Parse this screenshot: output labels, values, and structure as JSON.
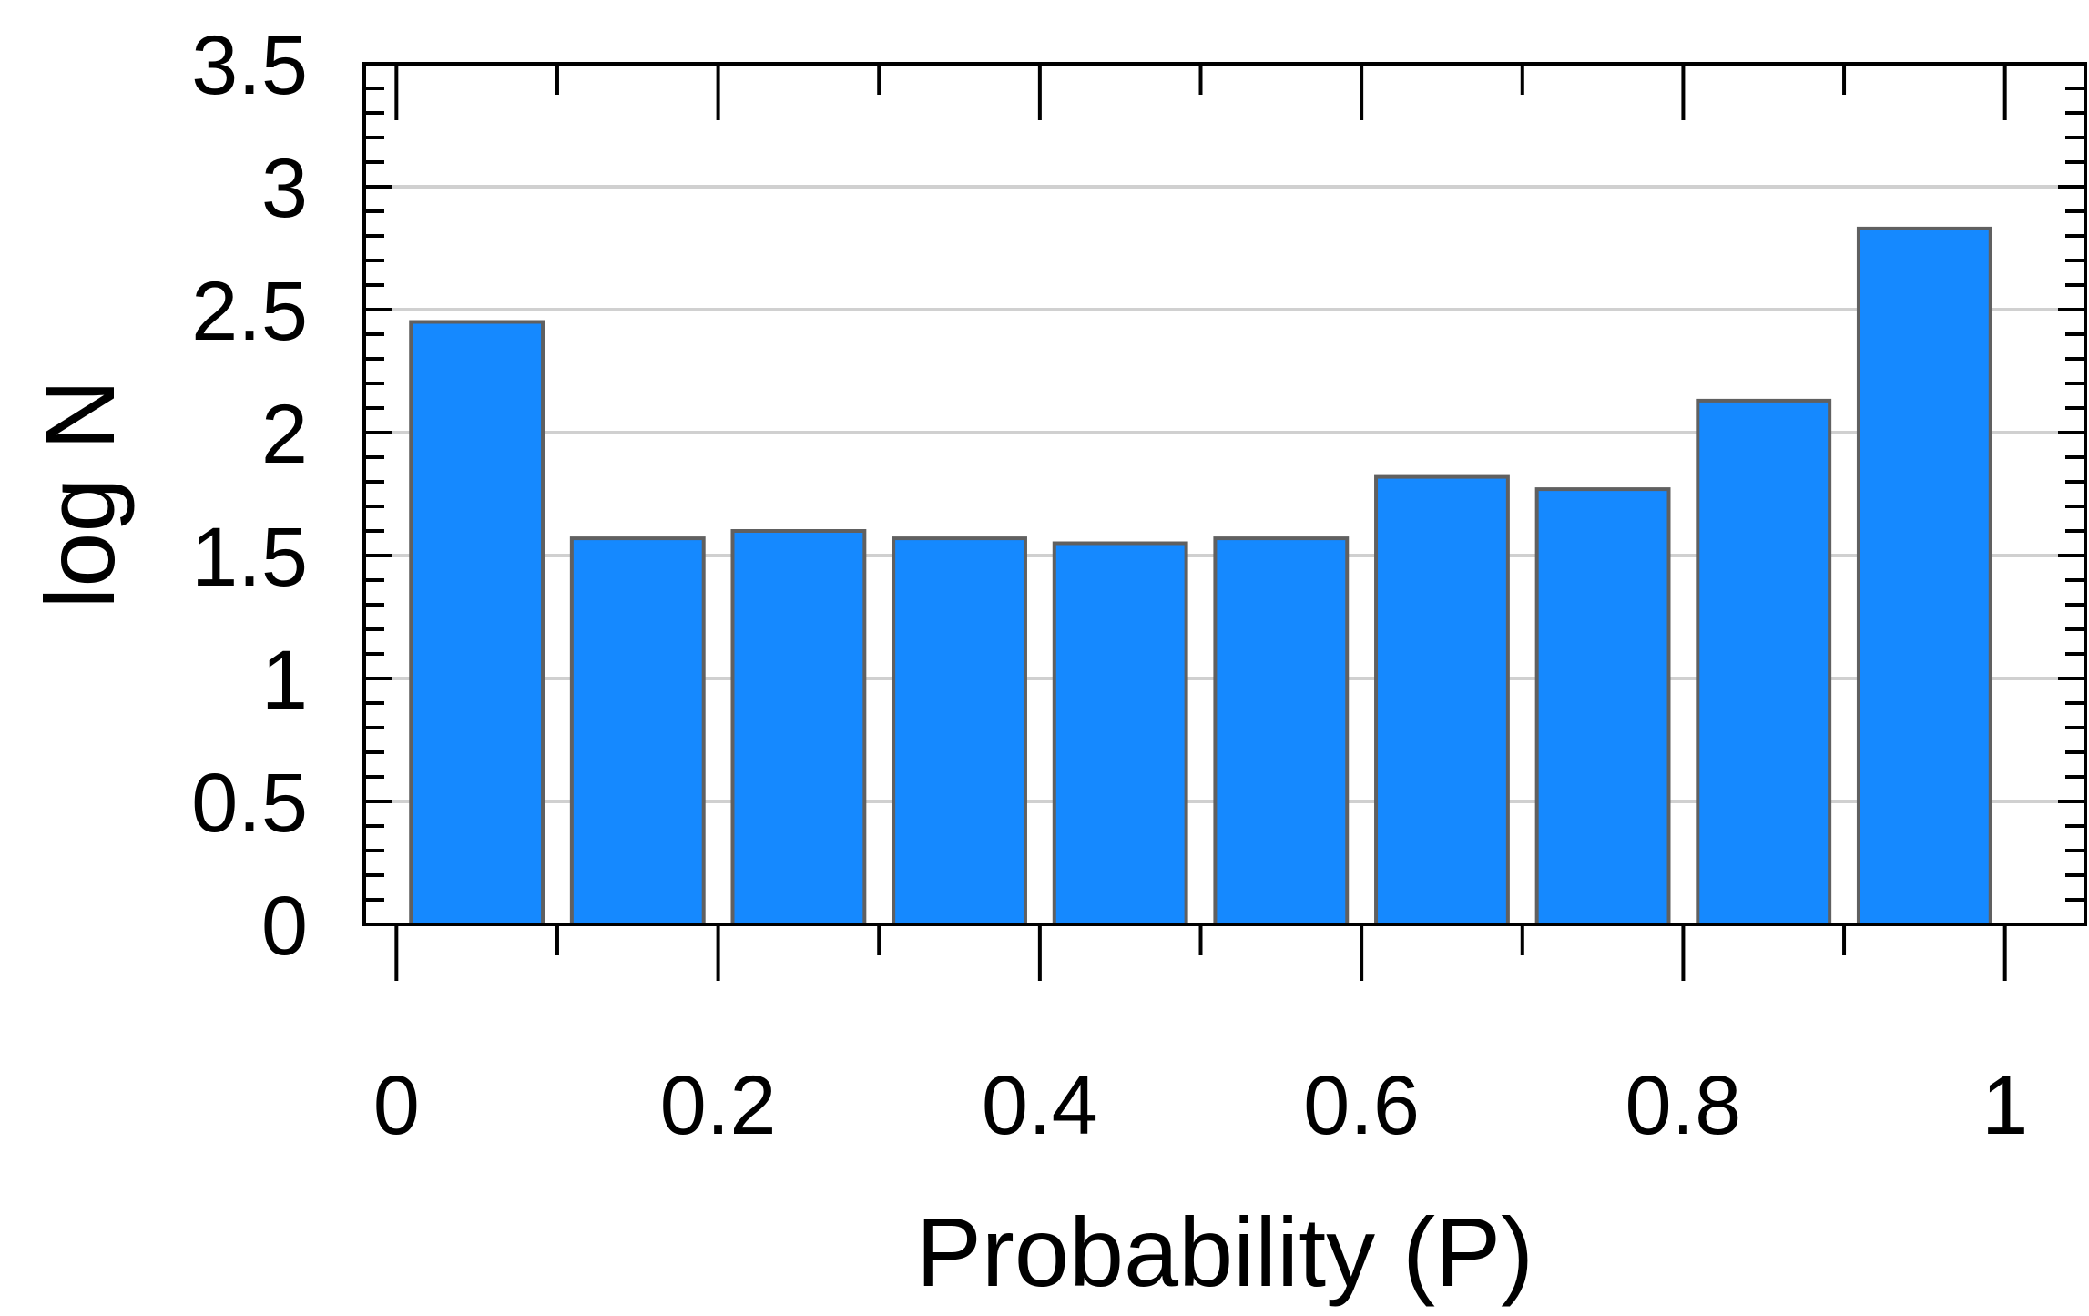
{
  "chart_data": {
    "type": "bar",
    "title": "",
    "xlabel": "Probability (P)",
    "ylabel": "log N",
    "bin_edges": [
      0,
      0.1,
      0.2,
      0.3,
      0.4,
      0.5,
      0.6,
      0.7,
      0.8,
      0.9,
      1.0
    ],
    "values": [
      2.45,
      1.57,
      1.6,
      1.57,
      1.55,
      1.57,
      1.82,
      1.77,
      2.13,
      2.83
    ],
    "xlim": [
      -0.02,
      1.05
    ],
    "ylim": [
      0,
      3.5
    ],
    "x_ticks": [
      0,
      0.2,
      0.4,
      0.6,
      0.8,
      1
    ],
    "x_tick_labels": [
      "0",
      "0.2",
      "0.4",
      "0.6",
      "0.8",
      "1"
    ],
    "x_minor_ticks": [
      0.1,
      0.3,
      0.5,
      0.7,
      0.9
    ],
    "y_ticks": [
      0,
      0.5,
      1,
      1.5,
      2,
      2.5,
      3,
      3.5
    ],
    "y_tick_labels": [
      "0",
      "0.5",
      "1",
      "1.5",
      "2",
      "2.5",
      "3",
      "3.5"
    ],
    "y_minor_step": 0.1,
    "gridlines_y": [
      0,
      0.5,
      1,
      1.5,
      2,
      2.5,
      3
    ],
    "grid": true,
    "legend": "none",
    "colors": {
      "bar_fill": "#1589FF",
      "bar_edge": "#606060",
      "grid": "#D0D0D0",
      "axis": "#000000"
    }
  }
}
